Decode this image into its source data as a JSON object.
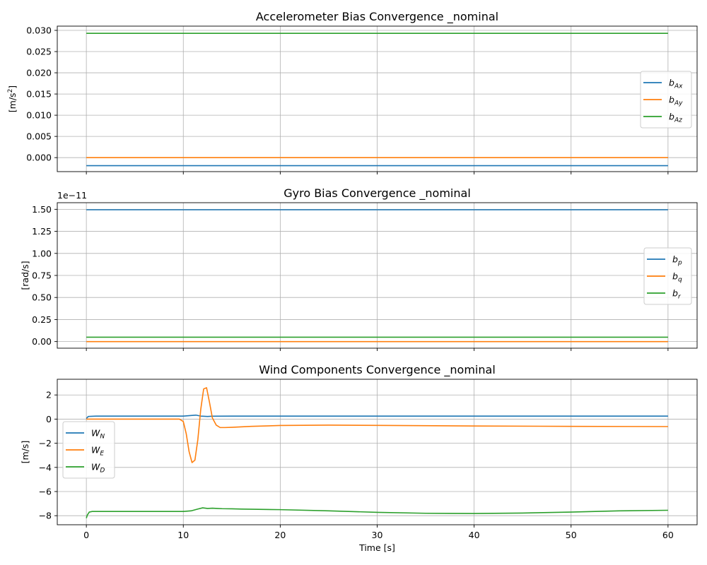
{
  "chart_data": [
    {
      "type": "line",
      "title": "Accelerometer Bias Convergence _nominal",
      "ylabel": "[m/s²]",
      "ylabel_main": "[m/s",
      "ylabel_sup": "2",
      "ylabel_end": "]",
      "xlim": [
        -3,
        63
      ],
      "ylim": [
        -0.0033,
        0.031
      ],
      "yticks": [
        -0.0,
        0.005,
        0.01,
        0.015,
        0.02,
        0.025,
        0.03
      ],
      "ytick_labels": [
        "0.000",
        "0.005",
        "0.010",
        "0.015",
        "0.020",
        "0.025",
        "0.030"
      ],
      "offset_text": "",
      "grid": true,
      "legend": "center-right",
      "series": [
        {
          "name": "b_Ax",
          "label_main": "b",
          "label_sub": "Ax",
          "color": "#1f77b4",
          "x": [
            0,
            60
          ],
          "y": [
            -0.0019,
            -0.0019
          ]
        },
        {
          "name": "b_Ay",
          "label_main": "b",
          "label_sub": "Ay",
          "color": "#ff7f0e",
          "x": [
            0,
            60
          ],
          "y": [
            0.0,
            0.0
          ]
        },
        {
          "name": "b_Az",
          "label_main": "b",
          "label_sub": "Az",
          "color": "#2ca02c",
          "x": [
            0,
            60
          ],
          "y": [
            0.0293,
            0.0293
          ]
        }
      ]
    },
    {
      "type": "line",
      "title": "Gyro Bias Convergence _nominal",
      "ylabel": "[rad/s]",
      "xlim": [
        -3,
        63
      ],
      "ylim": [
        -0.075,
        1.575
      ],
      "yticks": [
        0.0,
        0.25,
        0.5,
        0.75,
        1.0,
        1.25,
        1.5
      ],
      "ytick_labels": [
        "0.00",
        "0.25",
        "0.50",
        "0.75",
        "1.00",
        "1.25",
        "1.50"
      ],
      "offset_text": "1e−11",
      "grid": true,
      "legend": "center-right",
      "series": [
        {
          "name": "b_p",
          "label_main": "b",
          "label_sub": "p",
          "color": "#1f77b4",
          "x": [
            0,
            60
          ],
          "y": [
            1.495,
            1.495
          ]
        },
        {
          "name": "b_q",
          "label_main": "b",
          "label_sub": "q",
          "color": "#ff7f0e",
          "x": [
            0,
            60
          ],
          "y": [
            0.0,
            0.0
          ]
        },
        {
          "name": "b_r",
          "label_main": "b",
          "label_sub": "r",
          "color": "#2ca02c",
          "x": [
            0,
            60
          ],
          "y": [
            0.05,
            0.05
          ]
        }
      ]
    },
    {
      "type": "line",
      "title": "Wind Components Convergence _nominal",
      "ylabel": "[m/s]",
      "xlabel": "Time [s]",
      "xlim": [
        -3,
        63
      ],
      "ylim": [
        -8.75,
        3.3
      ],
      "xticks": [
        0,
        10,
        20,
        30,
        40,
        50,
        60
      ],
      "xtick_labels": [
        "0",
        "10",
        "20",
        "30",
        "40",
        "50",
        "60"
      ],
      "yticks": [
        -8,
        -6,
        -4,
        -2,
        0,
        2
      ],
      "ytick_labels": [
        "−8",
        "−6",
        "−4",
        "−2",
        "0",
        "2"
      ],
      "offset_text": "",
      "grid": true,
      "legend": "center-left",
      "series": [
        {
          "name": "W_N",
          "label_main": "W",
          "label_sub": "N",
          "color": "#1f77b4",
          "x": [
            0,
            0.2,
            1,
            5,
            10,
            10.8,
            11.3,
            11.8,
            12.5,
            13,
            15,
            20,
            30,
            40,
            50,
            60
          ],
          "y": [
            0.05,
            0.22,
            0.25,
            0.25,
            0.25,
            0.3,
            0.33,
            0.25,
            0.22,
            0.24,
            0.25,
            0.25,
            0.25,
            0.25,
            0.25,
            0.25
          ]
        },
        {
          "name": "W_E",
          "label_main": "W",
          "label_sub": "E",
          "color": "#ff7f0e",
          "x": [
            0,
            5,
            9.6,
            10,
            10.3,
            10.6,
            10.9,
            11.2,
            11.5,
            11.8,
            12.1,
            12.4,
            12.7,
            13.0,
            13.4,
            13.8,
            14.3,
            15,
            17,
            20,
            25,
            30,
            40,
            50,
            60
          ],
          "y": [
            0.0,
            0.0,
            0.0,
            -0.2,
            -1.2,
            -2.7,
            -3.6,
            -3.4,
            -1.7,
            0.8,
            2.5,
            2.6,
            1.4,
            0.1,
            -0.5,
            -0.7,
            -0.7,
            -0.68,
            -0.6,
            -0.53,
            -0.5,
            -0.52,
            -0.57,
            -0.6,
            -0.62
          ]
        },
        {
          "name": "W_D",
          "label_main": "W",
          "label_sub": "D",
          "color": "#2ca02c",
          "x": [
            0,
            0.1,
            0.3,
            0.6,
            1,
            5,
            10,
            10.8,
            11.5,
            12,
            12.5,
            13,
            13.5,
            14,
            15,
            16,
            20,
            25,
            30,
            35,
            40,
            45,
            50,
            55,
            60
          ],
          "y": [
            -8.2,
            -7.95,
            -7.7,
            -7.65,
            -7.65,
            -7.65,
            -7.65,
            -7.6,
            -7.45,
            -7.35,
            -7.4,
            -7.38,
            -7.4,
            -7.42,
            -7.43,
            -7.45,
            -7.5,
            -7.6,
            -7.72,
            -7.8,
            -7.82,
            -7.78,
            -7.7,
            -7.6,
            -7.55
          ]
        }
      ]
    }
  ]
}
